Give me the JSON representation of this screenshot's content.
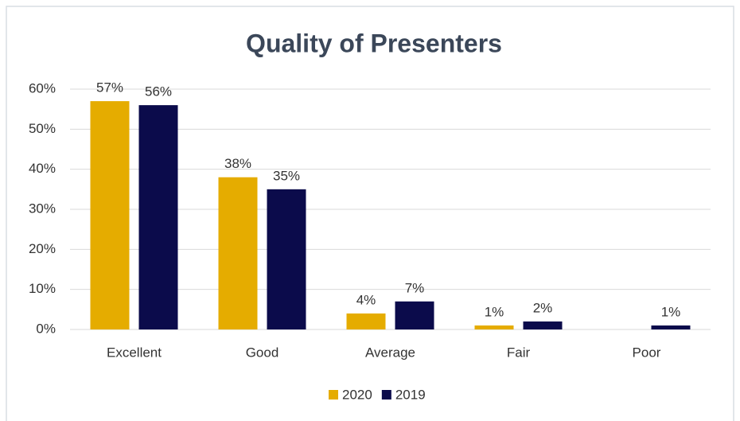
{
  "chart_data": {
    "type": "bar",
    "title": "Quality of Presenters",
    "categories": [
      "Excellent",
      "Good",
      "Average",
      "Fair",
      "Poor"
    ],
    "series": [
      {
        "name": "2020",
        "color": "#e5ac00",
        "values": [
          57,
          38,
          4,
          1,
          0
        ],
        "value_labels": [
          "57%",
          "38%",
          "4%",
          "1%",
          null
        ]
      },
      {
        "name": "2019",
        "color": "#0b0b4b",
        "values": [
          56,
          35,
          7,
          2,
          1
        ],
        "value_labels": [
          "56%",
          "35%",
          "7%",
          "2%",
          "1%"
        ]
      }
    ],
    "ylim": [
      0,
      60
    ],
    "yticks": [
      {
        "value": 0,
        "label": "0%"
      },
      {
        "value": 10,
        "label": "10%"
      },
      {
        "value": 20,
        "label": "20%"
      },
      {
        "value": 30,
        "label": "30%"
      },
      {
        "value": 40,
        "label": "40%"
      },
      {
        "value": 50,
        "label": "50%"
      },
      {
        "value": 60,
        "label": "60%"
      }
    ],
    "grid": true,
    "legend": "bottom"
  }
}
